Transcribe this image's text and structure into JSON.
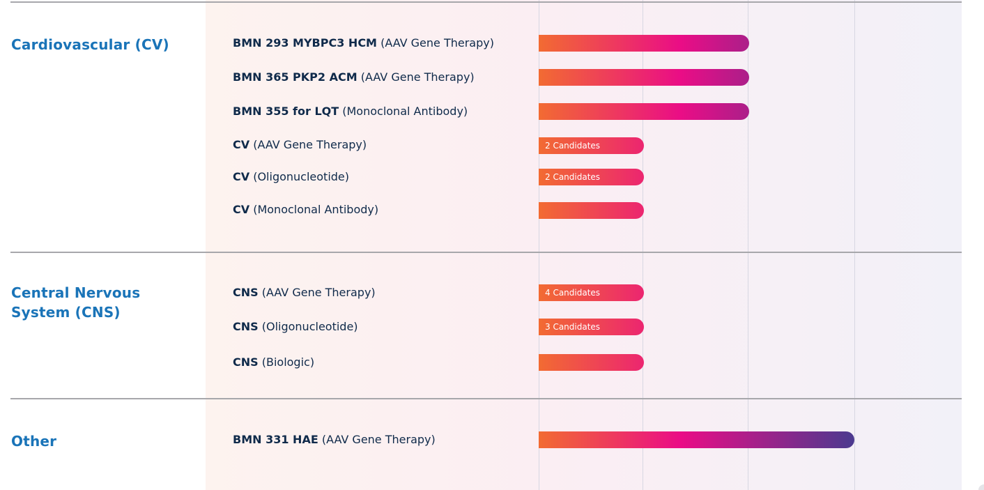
{
  "chart_data": {
    "type": "bar",
    "orientation": "horizontal",
    "title": "",
    "xlabel": "",
    "ylabel": "",
    "stage_lines": 3,
    "groups": [
      {
        "name": "Cardiovascular (CV)",
        "rows": [
          {
            "program": "BMN 293 MYBPC3 HCM",
            "modality": "AAV Gene Therapy",
            "stage": 2.0,
            "label": ""
          },
          {
            "program": "BMN 365 PKP2 ACM",
            "modality": "AAV Gene Therapy",
            "stage": 2.0,
            "label": ""
          },
          {
            "program": "BMN 355 for LQT",
            "modality": "Monoclonal Antibody",
            "stage": 2.0,
            "label": ""
          },
          {
            "program": "CV",
            "modality": "AAV Gene Therapy",
            "stage": 1.0,
            "label": "2 Candidates"
          },
          {
            "program": "CV",
            "modality": "Oligonucleotide",
            "stage": 1.0,
            "label": "2 Candidates"
          },
          {
            "program": "CV",
            "modality": "Monoclonal Antibody",
            "stage": 1.0,
            "label": ""
          }
        ]
      },
      {
        "name": "Central Nervous System (CNS)",
        "rows": [
          {
            "program": "CNS",
            "modality": "AAV Gene Therapy",
            "stage": 1.0,
            "label": "4 Candidates"
          },
          {
            "program": "CNS",
            "modality": "Oligonucleotide",
            "stage": 1.0,
            "label": "3 Candidates"
          },
          {
            "program": "CNS",
            "modality": "Biologic",
            "stage": 1.0,
            "label": ""
          }
        ]
      },
      {
        "name": "Other",
        "rows": [
          {
            "program": "BMN 331 HAE",
            "modality": "AAV Gene Therapy",
            "stage": 3.0,
            "label": ""
          }
        ]
      }
    ],
    "grid": true,
    "legend": "none"
  },
  "colors": {
    "category_text": "#1a74b8",
    "label_text": "#0f2a4a",
    "bar_start": "#f26b32",
    "bar_mid": "#ea0d86",
    "bar_end": "#4b3a8f",
    "divider": "#a7a7ab",
    "gridline": "#d7d7e2"
  }
}
